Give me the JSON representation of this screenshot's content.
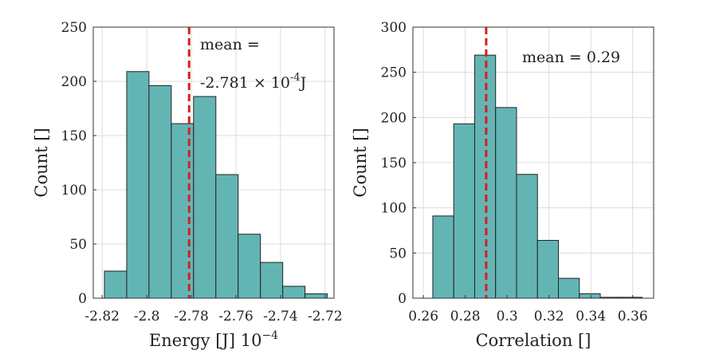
{
  "chart_data": [
    {
      "type": "bar",
      "subtype": "histogram",
      "xlabel": "Energy [J] 10",
      "xlabel_exponent": "−4",
      "ylabel": "Count []",
      "xlim": [
        -2.824,
        -2.716
      ],
      "ylim": [
        0,
        250
      ],
      "xticks": [
        -2.82,
        -2.8,
        -2.78,
        -2.76,
        -2.74,
        -2.72
      ],
      "xtick_labels": [
        "-2.82",
        "-2.8",
        "-2.78",
        "-2.76",
        "-2.74",
        "-2.72"
      ],
      "yticks": [
        0,
        50,
        100,
        150,
        200,
        250
      ],
      "ytick_labels": [
        "0",
        "50",
        "100",
        "150",
        "200",
        "250"
      ],
      "bin_edges": [
        -2.819,
        -2.809,
        -2.799,
        -2.789,
        -2.779,
        -2.769,
        -2.759,
        -2.749,
        -2.739,
        -2.729,
        -2.719
      ],
      "values": [
        25,
        209,
        196,
        161,
        186,
        114,
        59,
        33,
        11,
        4
      ],
      "mean_line_x": -2.781,
      "grid": true,
      "annotation_line1": "mean =",
      "annotation_line2_prefix": "-2.781 × 10",
      "annotation_line2_exponent": "-4",
      "annotation_line2_suffix": "J"
    },
    {
      "type": "bar",
      "subtype": "histogram",
      "xlabel": "Correlation []",
      "ylabel": "Count []",
      "xlim": [
        0.255,
        0.37
      ],
      "ylim": [
        0,
        300
      ],
      "xticks": [
        0.26,
        0.28,
        0.3,
        0.32,
        0.34,
        0.36
      ],
      "xtick_labels": [
        "0.26",
        "0.28",
        "0.3",
        "0.32",
        "0.34",
        "0.36"
      ],
      "yticks": [
        0,
        50,
        100,
        150,
        200,
        250,
        300
      ],
      "ytick_labels": [
        "0",
        "50",
        "100",
        "150",
        "200",
        "250",
        "300"
      ],
      "bin_edges": [
        0.2645,
        0.2745,
        0.2845,
        0.2945,
        0.3045,
        0.3145,
        0.3245,
        0.3345,
        0.3445,
        0.3545,
        0.3645
      ],
      "values": [
        91,
        193,
        269,
        211,
        137,
        64,
        22,
        5,
        1,
        1
      ],
      "mean_line_x": 0.29,
      "grid": true,
      "annotation": "mean = 0.29"
    }
  ],
  "colors": {
    "bar_fill": "#63b5b4",
    "bar_edge": "#222222",
    "mean_line": "#dd1c1c",
    "grid": "#dcdcdc",
    "axes": "#333333"
  }
}
